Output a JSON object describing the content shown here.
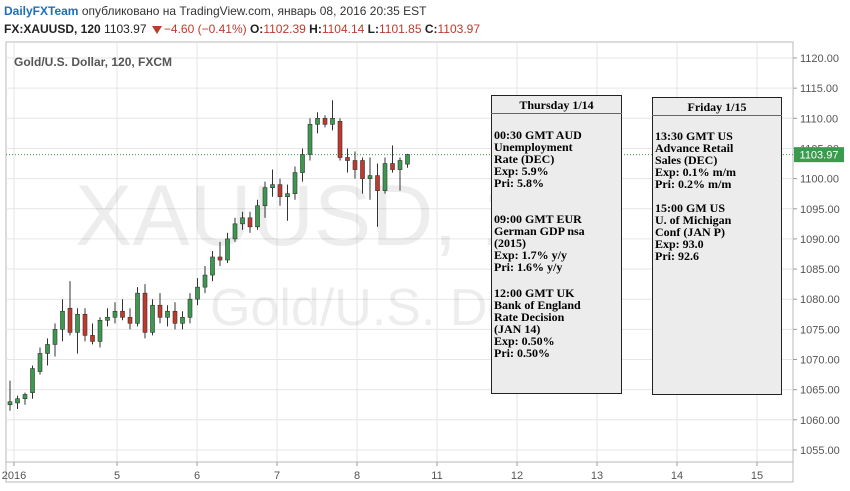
{
  "header": {
    "brand": "DailyFXTeam",
    "published": "опубликовано на TradingView.com, январь 08, 2016 20:35 EST",
    "symbol": "FX:XAUUSD, 120",
    "last": "1103.97",
    "change": "−4.60 (−0.41%)",
    "o_label": "O:",
    "o_value": "1102.39",
    "h_label": "H:",
    "h_value": "1104.14",
    "l_label": "L:",
    "l_value": "1101.85",
    "c_label": "C:",
    "c_value": "1103.97"
  },
  "chart_title": "Gold/U.S. Dollar, 120, FXCM",
  "watermark": {
    "symbol": "XAUUSD, 120",
    "name": "Gold/U.S. Dollar"
  },
  "colors": {
    "up": "#3c9a4f",
    "down": "#c0392b",
    "grid": "#e6e6e6",
    "price_line": "#3c9a4f"
  },
  "chart_data": {
    "type": "candlestick",
    "title": "Gold/U.S. Dollar, 120, FXCM",
    "ylim": [
      1050,
      1122.5
    ],
    "y_ticks": [
      "1120.00",
      "1115.00",
      "1110.00",
      "1105.00",
      "1100.00",
      "1095.00",
      "1090.00",
      "1085.00",
      "1080.00",
      "1075.00",
      "1070.00",
      "1065.00",
      "1060.00",
      "1055.00"
    ],
    "x_ticks": [
      "2016",
      "5",
      "6",
      "7",
      "8",
      "11",
      "12",
      "13",
      "14",
      "15"
    ],
    "last_price": "1103.97",
    "candles": [
      {
        "o": 1062.5,
        "h": 1066.5,
        "l": 1061.5,
        "c": 1063.0
      },
      {
        "o": 1062.8,
        "h": 1064.0,
        "l": 1061.8,
        "c": 1063.5
      },
      {
        "o": 1063.5,
        "h": 1064.5,
        "l": 1062.5,
        "c": 1064.2
      },
      {
        "o": 1064.5,
        "h": 1069.0,
        "l": 1063.5,
        "c": 1068.5
      },
      {
        "o": 1068.0,
        "h": 1072.0,
        "l": 1067.5,
        "c": 1071.0
      },
      {
        "o": 1071.0,
        "h": 1073.5,
        "l": 1069.0,
        "c": 1072.5
      },
      {
        "o": 1072.5,
        "h": 1076.0,
        "l": 1070.5,
        "c": 1075.0
      },
      {
        "o": 1075.0,
        "h": 1080.0,
        "l": 1073.0,
        "c": 1078.0
      },
      {
        "o": 1078.5,
        "h": 1083.0,
        "l": 1074.0,
        "c": 1074.5
      },
      {
        "o": 1074.5,
        "h": 1078.5,
        "l": 1071.0,
        "c": 1077.5
      },
      {
        "o": 1077.5,
        "h": 1078.5,
        "l": 1073.0,
        "c": 1074.0
      },
      {
        "o": 1074.0,
        "h": 1076.0,
        "l": 1072.5,
        "c": 1073.0
      },
      {
        "o": 1073.0,
        "h": 1077.0,
        "l": 1072.0,
        "c": 1076.5
      },
      {
        "o": 1076.5,
        "h": 1078.5,
        "l": 1075.5,
        "c": 1077.0
      },
      {
        "o": 1077.0,
        "h": 1079.5,
        "l": 1076.0,
        "c": 1078.0
      },
      {
        "o": 1078.0,
        "h": 1080.0,
        "l": 1076.5,
        "c": 1077.0
      },
      {
        "o": 1077.0,
        "h": 1078.5,
        "l": 1075.0,
        "c": 1076.0
      },
      {
        "o": 1076.0,
        "h": 1082.0,
        "l": 1075.5,
        "c": 1081.0
      },
      {
        "o": 1081.0,
        "h": 1082.5,
        "l": 1073.5,
        "c": 1074.5
      },
      {
        "o": 1074.5,
        "h": 1080.0,
        "l": 1074.0,
        "c": 1079.0
      },
      {
        "o": 1079.0,
        "h": 1081.0,
        "l": 1076.0,
        "c": 1077.0
      },
      {
        "o": 1077.0,
        "h": 1079.0,
        "l": 1075.5,
        "c": 1078.0
      },
      {
        "o": 1078.0,
        "h": 1079.5,
        "l": 1075.0,
        "c": 1076.0
      },
      {
        "o": 1076.0,
        "h": 1078.0,
        "l": 1075.0,
        "c": 1077.0
      },
      {
        "o": 1077.0,
        "h": 1081.0,
        "l": 1076.0,
        "c": 1080.0
      },
      {
        "o": 1080.0,
        "h": 1083.5,
        "l": 1079.0,
        "c": 1082.0
      },
      {
        "o": 1082.0,
        "h": 1085.5,
        "l": 1081.0,
        "c": 1084.0
      },
      {
        "o": 1084.0,
        "h": 1088.0,
        "l": 1083.0,
        "c": 1087.0
      },
      {
        "o": 1087.0,
        "h": 1089.5,
        "l": 1085.5,
        "c": 1086.5
      },
      {
        "o": 1086.5,
        "h": 1091.0,
        "l": 1086.0,
        "c": 1090.0
      },
      {
        "o": 1090.0,
        "h": 1093.5,
        "l": 1089.5,
        "c": 1092.5
      },
      {
        "o": 1092.5,
        "h": 1094.5,
        "l": 1091.5,
        "c": 1093.5
      },
      {
        "o": 1093.5,
        "h": 1094.5,
        "l": 1091.0,
        "c": 1092.0
      },
      {
        "o": 1092.0,
        "h": 1096.5,
        "l": 1091.5,
        "c": 1095.5
      },
      {
        "o": 1095.5,
        "h": 1099.5,
        "l": 1093.5,
        "c": 1098.5
      },
      {
        "o": 1098.5,
        "h": 1101.5,
        "l": 1097.0,
        "c": 1099.0
      },
      {
        "o": 1099.0,
        "h": 1100.0,
        "l": 1095.5,
        "c": 1097.0
      },
      {
        "o": 1097.0,
        "h": 1099.0,
        "l": 1093.0,
        "c": 1097.5
      },
      {
        "o": 1097.5,
        "h": 1102.0,
        "l": 1096.5,
        "c": 1101.0
      },
      {
        "o": 1101.0,
        "h": 1105.0,
        "l": 1099.5,
        "c": 1104.0
      },
      {
        "o": 1104.0,
        "h": 1110.0,
        "l": 1103.0,
        "c": 1109.0
      },
      {
        "o": 1109.0,
        "h": 1111.0,
        "l": 1107.5,
        "c": 1110.0
      },
      {
        "o": 1110.0,
        "h": 1110.5,
        "l": 1108.5,
        "c": 1109.0
      },
      {
        "o": 1109.0,
        "h": 1113.0,
        "l": 1108.0,
        "c": 1110.0
      },
      {
        "o": 1109.5,
        "h": 1110.0,
        "l": 1103.0,
        "c": 1103.5
      },
      {
        "o": 1103.5,
        "h": 1105.0,
        "l": 1101.0,
        "c": 1103.0
      },
      {
        "o": 1103.0,
        "h": 1104.5,
        "l": 1100.0,
        "c": 1101.5
      },
      {
        "o": 1103.0,
        "h": 1103.5,
        "l": 1097.5,
        "c": 1100.0
      },
      {
        "o": 1100.0,
        "h": 1103.5,
        "l": 1096.5,
        "c": 1100.5
      },
      {
        "o": 1100.5,
        "h": 1102.5,
        "l": 1092.0,
        "c": 1098.0
      },
      {
        "o": 1098.0,
        "h": 1103.5,
        "l": 1097.5,
        "c": 1102.5
      },
      {
        "o": 1102.5,
        "h": 1105.5,
        "l": 1101.0,
        "c": 1101.5
      },
      {
        "o": 1101.5,
        "h": 1103.5,
        "l": 1098.0,
        "c": 1103.0
      },
      {
        "o": 1102.4,
        "h": 1104.1,
        "l": 1101.8,
        "c": 1104.0
      }
    ]
  },
  "events": {
    "thursday": {
      "title": "Thursday 1/14",
      "items": [
        {
          "lines": [
            "00:30 GMT AUD",
            "Unemployment",
            "Rate (DEC)",
            "Exp: 5.9%",
            "Pri: 5.8%"
          ]
        },
        {
          "lines": [
            "09:00 GMT EUR",
            "German GDP nsa",
            "(2015)",
            "Exp: 1.7% y/y",
            "Pri: 1.6% y/y"
          ]
        },
        {
          "lines": [
            "12:00 GMT UK",
            "Bank of England",
            "Rate Decision",
            "(JAN 14)",
            "Exp: 0.50%",
            "Pri: 0.50%"
          ]
        }
      ]
    },
    "friday": {
      "title": "Friday 1/15",
      "items": [
        {
          "lines": [
            "13:30 GMT US",
            "Advance Retail",
            "Sales (DEC)",
            "Exp: 0.1% m/m",
            "Pri: 0.2% m/m"
          ]
        },
        {
          "lines": [
            "15:00 GM US",
            "U. of Michigan",
            "Conf (JAN P)",
            "Exp: 93.0",
            "Pri: 92.6"
          ]
        }
      ]
    }
  }
}
